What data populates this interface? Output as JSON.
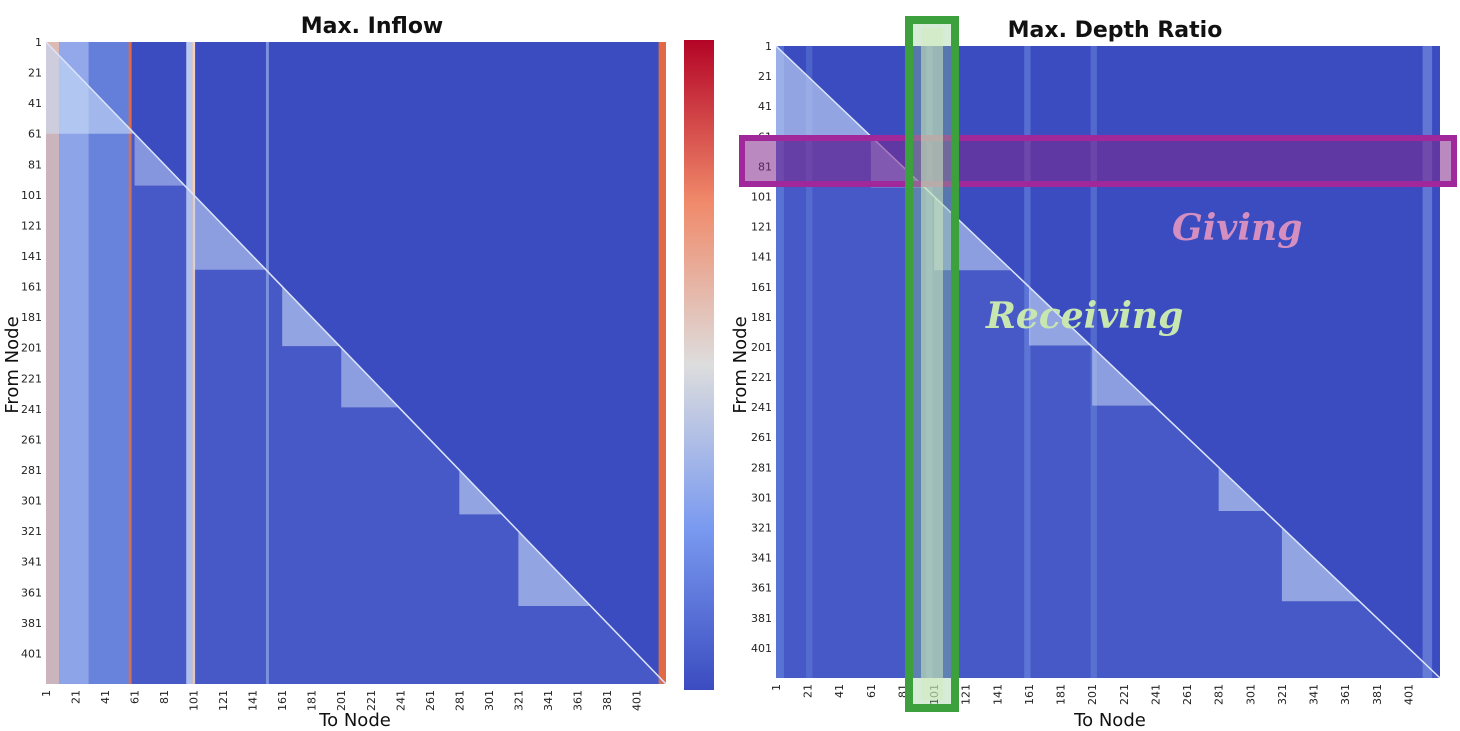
{
  "chart_data": [
    {
      "type": "heatmap",
      "title": "Max. Inflow",
      "xlabel": "To Node",
      "ylabel": "From Node",
      "x_ticks": [
        "1",
        "21",
        "41",
        "61",
        "81",
        "101",
        "121",
        "141",
        "161",
        "181",
        "201",
        "221",
        "241",
        "261",
        "281",
        "301",
        "321",
        "341",
        "361",
        "381",
        "401"
      ],
      "y_ticks": [
        "1",
        "21",
        "41",
        "61",
        "81",
        "101",
        "121",
        "141",
        "161",
        "181",
        "201",
        "221",
        "241",
        "261",
        "281",
        "301",
        "321",
        "341",
        "361",
        "381",
        "401"
      ],
      "node_range": [
        1,
        421
      ],
      "colormap": "coolwarm",
      "colorbar": true,
      "grid": false
    },
    {
      "type": "heatmap",
      "title": "Max. Depth Ratio",
      "xlabel": "To Node",
      "ylabel": "From Node",
      "x_ticks": [
        "1",
        "21",
        "41",
        "61",
        "81",
        "101",
        "121",
        "141",
        "161",
        "181",
        "201",
        "221",
        "241",
        "261",
        "281",
        "301",
        "321",
        "341",
        "361",
        "381",
        "401"
      ],
      "y_ticks": [
        "1",
        "21",
        "41",
        "61",
        "81",
        "101",
        "121",
        "141",
        "161",
        "181",
        "201",
        "221",
        "241",
        "261",
        "281",
        "301",
        "321",
        "341",
        "361",
        "381",
        "401"
      ],
      "node_range": [
        1,
        421
      ],
      "colormap": "coolwarm",
      "colorbar": false,
      "grid": false,
      "annotations": [
        {
          "text": "Giving",
          "orientation": "row",
          "color": "#d48fc0",
          "highlight_color": "#a0289a"
        },
        {
          "text": "Receiving",
          "orientation": "column",
          "color": "#c8e6b0",
          "highlight_color": "#3ca03c"
        }
      ]
    }
  ],
  "colors": {
    "low": "#3b4cc0",
    "mid": "#dddddd",
    "high": "#b40426",
    "giving_box": "#a0289a",
    "receiving_box": "#3ca03c"
  }
}
